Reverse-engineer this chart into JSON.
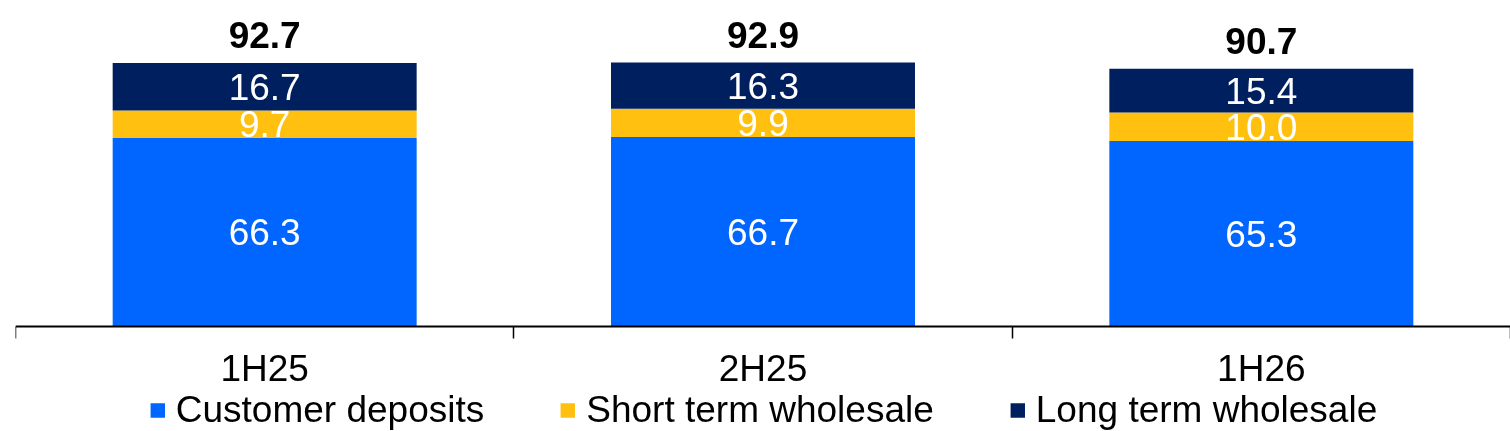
{
  "chart_data": {
    "type": "bar",
    "stacked": true,
    "categories": [
      "1H25",
      "2H25",
      "1H26"
    ],
    "series": [
      {
        "name": "Customer deposits",
        "color": "#0066ff",
        "values": [
          66.3,
          66.7,
          65.3
        ],
        "value_labels": [
          "66.3",
          "66.7",
          "65.3"
        ]
      },
      {
        "name": "Short term wholesale",
        "color": "#ffc010",
        "values": [
          9.7,
          9.9,
          10.0
        ],
        "value_labels": [
          "9.7",
          "9.9",
          "10.0"
        ]
      },
      {
        "name": "Long term wholesale",
        "color": "#001f5f",
        "values": [
          16.7,
          16.3,
          15.4
        ],
        "value_labels": [
          "16.7",
          "16.3",
          "15.4"
        ]
      }
    ],
    "totals": [
      "92.7",
      "92.9",
      "90.7"
    ],
    "legend": "bottom"
  }
}
